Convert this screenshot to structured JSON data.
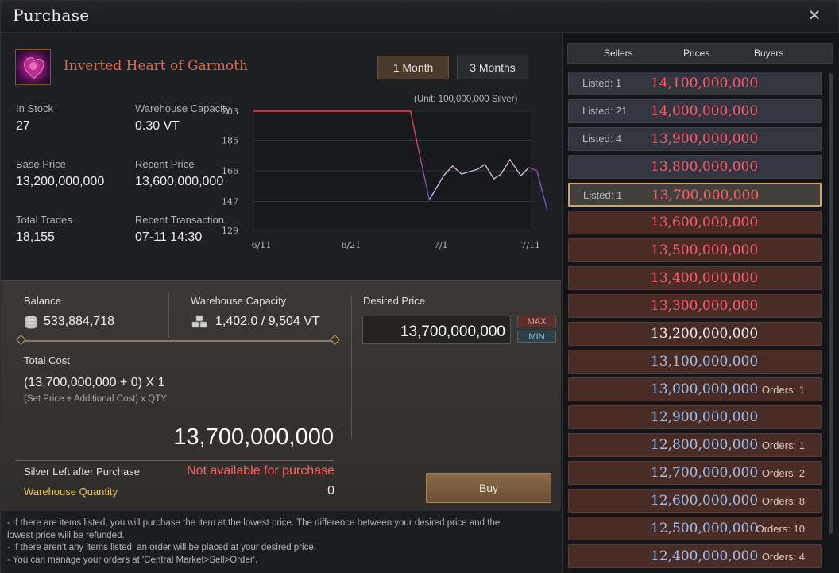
{
  "window": {
    "title": "Purchase"
  },
  "item": {
    "name": "Inverted Heart of Garmoth"
  },
  "range_tabs": {
    "month1": "1 Month",
    "month3": "3 Months"
  },
  "stats": {
    "in_stock_label": "In Stock",
    "in_stock": "27",
    "warehouse_label": "Warehouse Capacity",
    "warehouse": "0.30 VT",
    "base_price_label": "Base Price",
    "base_price": "13,200,000,000",
    "recent_price_label": "Recent Price",
    "recent_price": "13,600,000,000",
    "total_trades_label": "Total Trades",
    "total_trades": "18,155",
    "recent_tx_label": "Recent Transaction",
    "recent_tx": "07-11 14:30"
  },
  "chart_data": {
    "type": "line",
    "unit_note": "(Unit: 100,000,000 Silver)",
    "y_ticks": [
      "203",
      "185",
      "166",
      "147",
      "129"
    ],
    "y_tick_values": [
      203,
      185,
      166,
      147,
      129
    ],
    "x_ticks": [
      "6/11",
      "6/21",
      "7/1",
      "7/11"
    ],
    "x_tick_days": [
      0,
      10,
      20,
      30
    ],
    "ylim": [
      129,
      203
    ],
    "xlim": [
      0,
      31
    ],
    "grid": true,
    "series": [
      {
        "values": [
          [
            0,
            203
          ],
          [
            1,
            203
          ],
          [
            2,
            203
          ],
          [
            3,
            203
          ],
          [
            4,
            203
          ],
          [
            5,
            203
          ],
          [
            6,
            203
          ],
          [
            7,
            203
          ],
          [
            8,
            203
          ],
          [
            9,
            203
          ],
          [
            10,
            203
          ],
          [
            11,
            203
          ],
          [
            12,
            203
          ],
          [
            13,
            203
          ],
          [
            14,
            203
          ],
          [
            15,
            203
          ],
          [
            16,
            203
          ],
          [
            17,
            203
          ],
          [
            17.5,
            203
          ],
          [
            19.6,
            148
          ],
          [
            21.2,
            163
          ],
          [
            22.2,
            169
          ],
          [
            23.2,
            164
          ],
          [
            25,
            167
          ],
          [
            25.8,
            170
          ],
          [
            26.8,
            161
          ],
          [
            27.6,
            164
          ],
          [
            28.6,
            173
          ],
          [
            29.8,
            163
          ],
          [
            30.7,
            168
          ],
          [
            31.6,
            166
          ],
          [
            33.2,
            132
          ]
        ]
      }
    ]
  },
  "purchase": {
    "balance_label": "Balance",
    "balance": "533,884,718",
    "capacity_label": "Warehouse Capacity",
    "capacity": "1,402.0 / 9,504 VT",
    "desired_label": "Desired Price",
    "desired_value": "13,700,000,000",
    "max_label": "MAX",
    "min_label": "MIN",
    "total_cost_label": "Total Cost",
    "formula": "(13,700,000,000 + 0) X 1",
    "formula_note": "(Set Price + Additional Cost) x QTY",
    "total": "13,700,000,000",
    "silver_left_label": "Silver Left after Purchase",
    "silver_left_value": "Not available for purchase",
    "wh_qty_label": "Warehouse Quantity",
    "wh_qty": "0",
    "buy_label": "Buy"
  },
  "notes": [
    "- If there are items listed, you will purchase the item at the lowest price. The difference between your desired price and the",
    "lowest price will be refunded.",
    "- If there aren't any items listed, an order will be placed at your desired price.",
    "- You can manage your orders at 'Central Market>Sell>Order'."
  ],
  "book": {
    "headers": {
      "sellers": "Sellers",
      "prices": "Prices",
      "buyers": "Buyers"
    },
    "rows": [
      {
        "type": "sell",
        "listed": "Listed: 1",
        "price": "14,100,000,000",
        "orders": "",
        "color": "#ff5a6a"
      },
      {
        "type": "sell",
        "listed": "Listed: 21",
        "price": "14,000,000,000",
        "orders": "",
        "color": "#ff5a6a"
      },
      {
        "type": "sell",
        "listed": "Listed: 4",
        "price": "13,900,000,000",
        "orders": "",
        "color": "#ff5a6a"
      },
      {
        "type": "sell",
        "listed": "",
        "price": "13,800,000,000",
        "orders": "",
        "color": "#ff5a6a"
      },
      {
        "type": "sel",
        "listed": "Listed: 1",
        "price": "13,700,000,000",
        "orders": "",
        "color": "#ff5a6a"
      },
      {
        "type": "buy",
        "listed": "",
        "price": "13,600,000,000",
        "orders": "",
        "color": "#ff5a6a"
      },
      {
        "type": "buy",
        "listed": "",
        "price": "13,500,000,000",
        "orders": "",
        "color": "#ff5a6a"
      },
      {
        "type": "buy",
        "listed": "",
        "price": "13,400,000,000",
        "orders": "",
        "color": "#ff5a6a"
      },
      {
        "type": "buy",
        "listed": "",
        "price": "13,300,000,000",
        "orders": "",
        "color": "#ff5a6a"
      },
      {
        "type": "buy",
        "listed": "",
        "price": "13,200,000,000",
        "orders": "",
        "color": "#f0f0f0"
      },
      {
        "type": "buy",
        "listed": "",
        "price": "13,100,000,000",
        "orders": "",
        "color": "#9fc0ec"
      },
      {
        "type": "buy",
        "listed": "",
        "price": "13,000,000,000",
        "orders": "Orders: 1",
        "color": "#9fc0ec"
      },
      {
        "type": "buy",
        "listed": "",
        "price": "12,900,000,000",
        "orders": "",
        "color": "#9fc0ec"
      },
      {
        "type": "buy",
        "listed": "",
        "price": "12,800,000,000",
        "orders": "Orders: 1",
        "color": "#9fc0ec"
      },
      {
        "type": "buy",
        "listed": "",
        "price": "12,700,000,000",
        "orders": "Orders: 2",
        "color": "#9fc0ec"
      },
      {
        "type": "buy",
        "listed": "",
        "price": "12,600,000,000",
        "orders": "Orders: 8",
        "color": "#9fc0ec"
      },
      {
        "type": "buy",
        "listed": "",
        "price": "12,500,000,000",
        "orders": "Orders: 10",
        "color": "#9fc0ec"
      },
      {
        "type": "buy",
        "listed": "",
        "price": "12,400,000,000",
        "orders": "Orders: 4",
        "color": "#9fc0ec"
      }
    ]
  }
}
